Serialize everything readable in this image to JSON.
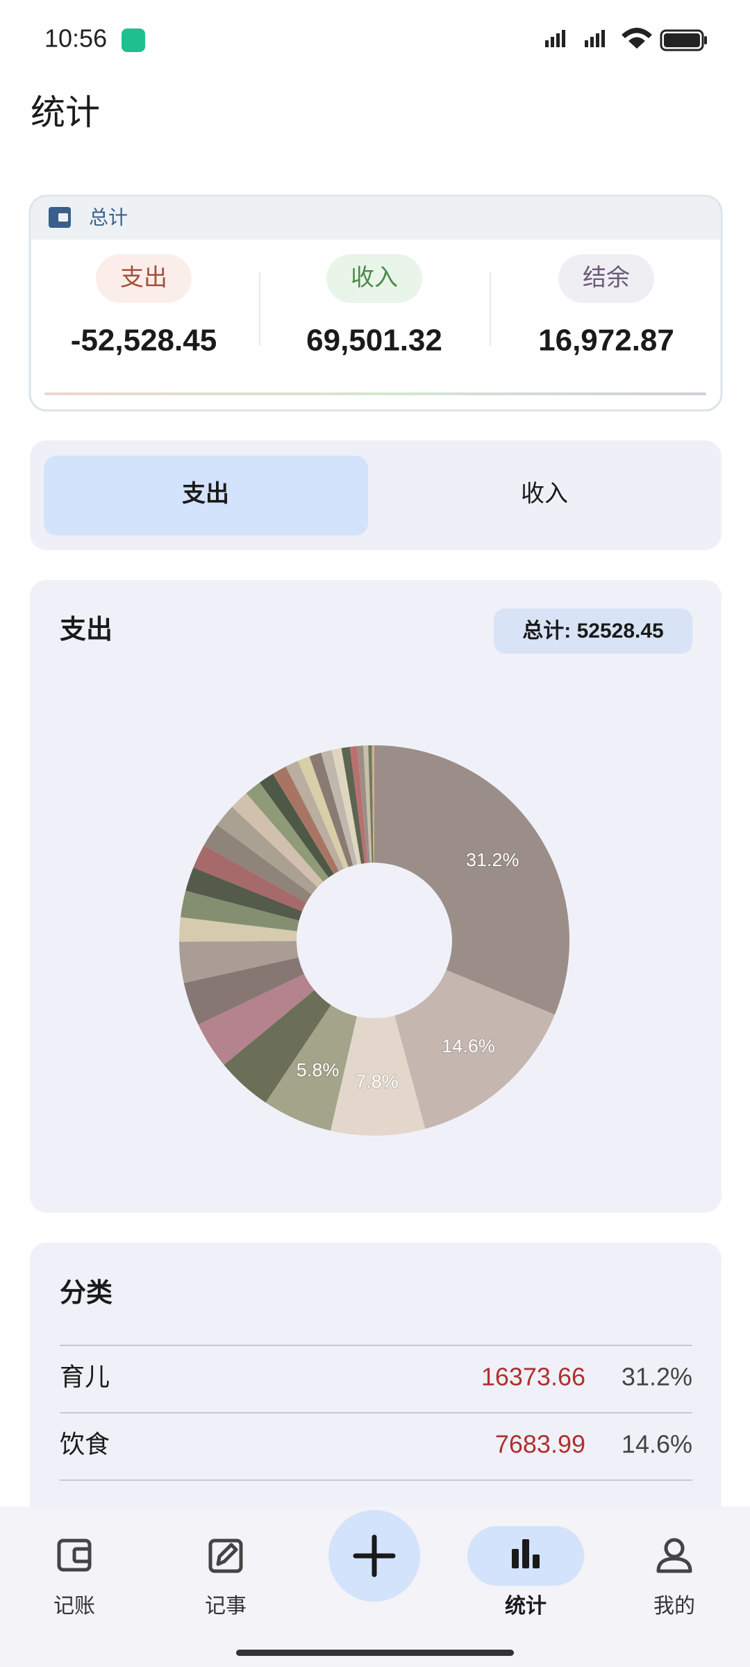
{
  "status_bar": {
    "time": "10:56"
  },
  "header": {
    "title": "统计"
  },
  "summary": {
    "title": "总计",
    "items": [
      {
        "label": "支出",
        "amount": "-52,528.45"
      },
      {
        "label": "收入",
        "amount": "69,501.32"
      },
      {
        "label": "结余",
        "amount": "16,972.87"
      }
    ]
  },
  "tabs": [
    "支出",
    "收入"
  ],
  "chart_data": {
    "type": "pie",
    "title": "支出",
    "total_label": "总计: 52528.45",
    "values": [
      31.2,
      14.6,
      7.8,
      5.8,
      4.6,
      3.9,
      3.6,
      3.4,
      2.0,
      2.2,
      2.0,
      2.0,
      2.0,
      1.9,
      1.6,
      1.4,
      1.3,
      1.2,
      1.1,
      1.0,
      1.0,
      0.9,
      0.8,
      0.7,
      0.6,
      0.5,
      0.4,
      0.3,
      0.2
    ],
    "value_labels": [
      "31.2%",
      "14.6%",
      "7.8%",
      "5.8%",
      null,
      null,
      null,
      null,
      null,
      null,
      null,
      null,
      null,
      null,
      null,
      null,
      null,
      null,
      null,
      null,
      null,
      null,
      null,
      null,
      null,
      null,
      null,
      null,
      null
    ],
    "colors": [
      "#9b8e88",
      "#c5b6b0",
      "#e3d6cb",
      "#a3a48a",
      "#6b6f58",
      "#b5838d",
      "#877772",
      "#a99d95",
      "#d6cbad",
      "#848f72",
      "#555b4a",
      "#a66a6b",
      "#8e8479",
      "#aaa193",
      "#d2c0ae",
      "#8e9a78",
      "#4e5846",
      "#a87565",
      "#b9ae9f",
      "#d8cfa8",
      "#8a7b72",
      "#c0b8ae",
      "#e0d6c0",
      "#5d6450",
      "#b97070",
      "#9a8f86",
      "#c8bfa9",
      "#6f7a5f",
      "#d0b090"
    ]
  },
  "category_list": {
    "title": "分类",
    "rows": [
      [
        "育儿",
        "16373.66",
        "31.2%"
      ],
      [
        "饮食",
        "7683.99",
        "14.6%"
      ]
    ]
  },
  "nav": [
    "记账",
    "记事",
    "统计",
    "我的"
  ]
}
